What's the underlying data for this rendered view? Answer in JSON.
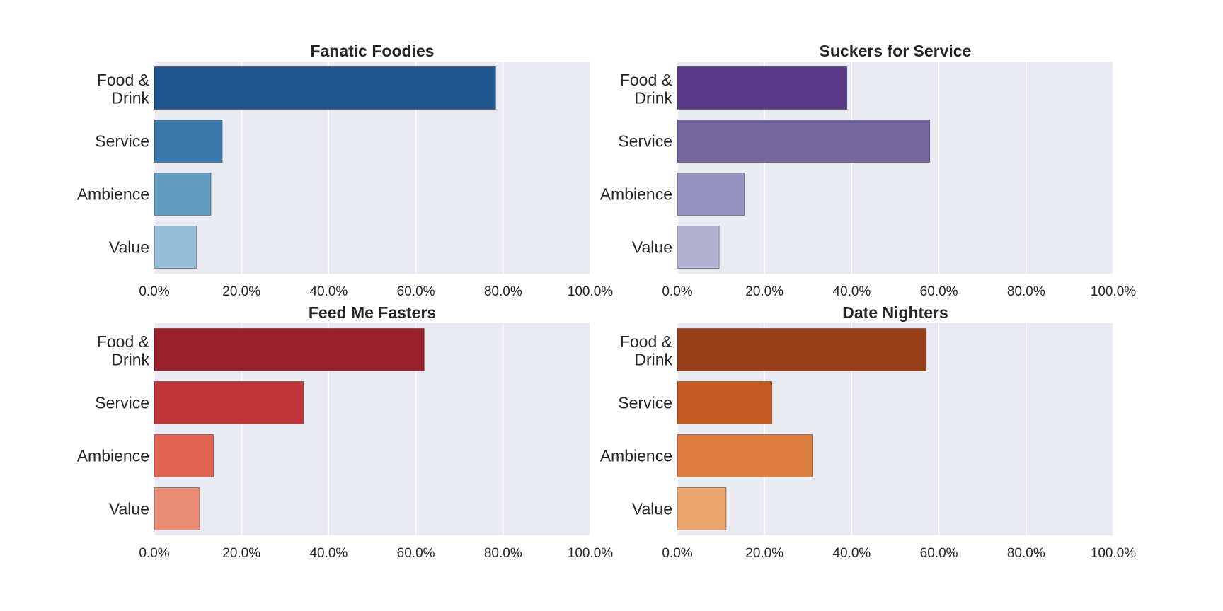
{
  "chart_data": [
    {
      "type": "bar",
      "orientation": "horizontal",
      "title": "Fanatic Foodies",
      "categories": [
        "Food & Drink",
        "Service",
        "Ambience",
        "Value"
      ],
      "values": [
        78.3,
        15.6,
        13.0,
        9.7
      ],
      "xlim": [
        0,
        100
      ],
      "xticks": [
        "0.0%",
        "20.0%",
        "40.0%",
        "60.0%",
        "80.0%",
        "100.0%"
      ],
      "grid": true,
      "colors": [
        "#1f558e",
        "#3a78aa",
        "#629cc1",
        "#95bed6"
      ]
    },
    {
      "type": "bar",
      "orientation": "horizontal",
      "title": "Suckers for Service",
      "categories": [
        "Food & Drink",
        "Service",
        "Ambience",
        "Value"
      ],
      "values": [
        38.9,
        57.9,
        15.4,
        9.6
      ],
      "xlim": [
        0,
        100
      ],
      "xticks": [
        "0.0%",
        "20.0%",
        "40.0%",
        "60.0%",
        "80.0%",
        "100.0%"
      ],
      "grid": true,
      "colors": [
        "#5a3986",
        "#7467a0",
        "#9593bd",
        "#b3b1d1"
      ]
    },
    {
      "type": "bar",
      "orientation": "horizontal",
      "title": "Feed Me Fasters",
      "categories": [
        "Food & Drink",
        "Service",
        "Ambience",
        "Value"
      ],
      "values": [
        61.9,
        34.2,
        13.6,
        10.4
      ],
      "xlim": [
        0,
        100
      ],
      "xticks": [
        "0.0%",
        "20.0%",
        "40.0%",
        "60.0%",
        "80.0%",
        "100.0%"
      ],
      "grid": true,
      "colors": [
        "#97202a",
        "#c13639",
        "#df6253",
        "#e98c75"
      ]
    },
    {
      "type": "bar",
      "orientation": "horizontal",
      "title": "Date Nighters",
      "categories": [
        "Food & Drink",
        "Service",
        "Ambience",
        "Value"
      ],
      "values": [
        57.1,
        21.7,
        31.0,
        11.2
      ],
      "xlim": [
        0,
        100
      ],
      "xticks": [
        "0.0%",
        "20.0%",
        "40.0%",
        "60.0%",
        "80.0%",
        "100.0%"
      ],
      "grid": true,
      "colors": [
        "#963f18",
        "#c45a22",
        "#dd7d3d",
        "#e9a36c"
      ]
    }
  ]
}
